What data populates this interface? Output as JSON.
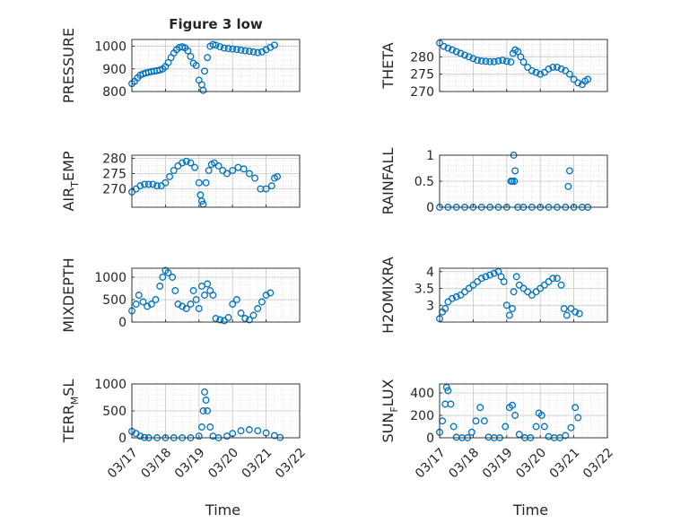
{
  "figure": {
    "title": "Figure 3 low",
    "marker_color": "#0072BD",
    "axis_color": "#262626",
    "grid": "on (major + minor dotted)"
  },
  "x_axis": {
    "label": "Time",
    "type": "date",
    "range": [
      "03/17",
      "03/22"
    ],
    "ticks": [
      "03/17",
      "03/18",
      "03/19",
      "03/20",
      "03/21",
      "03/22"
    ]
  },
  "chart_data": [
    {
      "type": "scatter",
      "ylabel": "PRESSURE",
      "ylim": [
        800,
        1030
      ],
      "yticks": [
        "800",
        "900",
        "1000"
      ],
      "points": [
        [
          "03/17 00:00",
          835
        ],
        [
          "03/17 02:00",
          845
        ],
        [
          "03/17 04:00",
          860
        ],
        [
          "03/17 06:00",
          872
        ],
        [
          "03/17 08:00",
          878
        ],
        [
          "03/17 10:00",
          882
        ],
        [
          "03/17 12:00",
          885
        ],
        [
          "03/17 14:00",
          888
        ],
        [
          "03/17 16:00",
          890
        ],
        [
          "03/17 18:00",
          892
        ],
        [
          "03/17 20:00",
          895
        ],
        [
          "03/17 22:00",
          900
        ],
        [
          "03/18 00:00",
          910
        ],
        [
          "03/18 02:00",
          928
        ],
        [
          "03/18 04:00",
          950
        ],
        [
          "03/18 06:00",
          970
        ],
        [
          "03/18 08:00",
          985
        ],
        [
          "03/18 10:00",
          995
        ],
        [
          "03/18 12:00",
          998
        ],
        [
          "03/18 14:00",
          993
        ],
        [
          "03/18 16:00",
          980
        ],
        [
          "03/18 18:00",
          955
        ],
        [
          "03/18 20:00",
          925
        ],
        [
          "03/18 22:00",
          915
        ],
        [
          "03/19 00:00",
          850
        ],
        [
          "03/19 02:00",
          830
        ],
        [
          "03/19 03:00",
          805
        ],
        [
          "03/19 04:00",
          890
        ],
        [
          "03/19 06:00",
          950
        ],
        [
          "03/19 08:00",
          1000
        ],
        [
          "03/19 10:00",
          1008
        ],
        [
          "03/19 12:00",
          1005
        ],
        [
          "03/19 15:00",
          998
        ],
        [
          "03/19 18:00",
          992
        ],
        [
          "03/19 21:00",
          990
        ],
        [
          "03/20 00:00",
          988
        ],
        [
          "03/20 03:00",
          986
        ],
        [
          "03/20 06:00",
          983
        ],
        [
          "03/20 09:00",
          980
        ],
        [
          "03/20 12:00",
          978
        ],
        [
          "03/20 15:00",
          975
        ],
        [
          "03/20 18:00",
          972
        ],
        [
          "03/20 21:00",
          975
        ],
        [
          "03/21 00:00",
          985
        ],
        [
          "03/21 03:00",
          995
        ],
        [
          "03/21 06:00",
          1005
        ]
      ]
    },
    {
      "type": "scatter",
      "ylabel": "THETA",
      "ylim": [
        270,
        285
      ],
      "yticks": [
        "270",
        "275",
        "280"
      ],
      "points": [
        [
          "03/17 00:00",
          284
        ],
        [
          "03/17 03:00",
          283
        ],
        [
          "03/17 06:00",
          282.5
        ],
        [
          "03/17 09:00",
          282
        ],
        [
          "03/17 12:00",
          281.5
        ],
        [
          "03/17 15:00",
          281
        ],
        [
          "03/17 18:00",
          280.5
        ],
        [
          "03/17 21:00",
          280
        ],
        [
          "03/18 00:00",
          279.5
        ],
        [
          "03/18 03:00",
          279
        ],
        [
          "03/18 06:00",
          278.8
        ],
        [
          "03/18 09:00",
          278.7
        ],
        [
          "03/18 12:00",
          278.6
        ],
        [
          "03/18 15:00",
          278.6
        ],
        [
          "03/18 18:00",
          278.8
        ],
        [
          "03/18 21:00",
          279
        ],
        [
          "03/19 00:00",
          278.7
        ],
        [
          "03/19 03:00",
          278.5
        ],
        [
          "03/19 04:30",
          281
        ],
        [
          "03/19 06:00",
          282
        ],
        [
          "03/19 08:00",
          281.5
        ],
        [
          "03/19 10:00",
          280
        ],
        [
          "03/19 12:00",
          278.5
        ],
        [
          "03/19 15:00",
          277
        ],
        [
          "03/19 18:00",
          276
        ],
        [
          "03/19 21:00",
          275.5
        ],
        [
          "03/20 00:00",
          275
        ],
        [
          "03/20 03:00",
          275.5
        ],
        [
          "03/20 06:00",
          276.5
        ],
        [
          "03/20 09:00",
          277
        ],
        [
          "03/20 12:00",
          277
        ],
        [
          "03/20 15:00",
          276.5
        ],
        [
          "03/20 18:00",
          276
        ],
        [
          "03/20 21:00",
          275
        ],
        [
          "03/21 00:00",
          273.5
        ],
        [
          "03/21 03:00",
          272.5
        ],
        [
          "03/21 06:00",
          272
        ],
        [
          "03/21 08:00",
          273
        ],
        [
          "03/21 10:00",
          273.5
        ]
      ]
    },
    {
      "type": "scatter",
      "ylabel": "AIR_TEMP",
      "ylim": [
        264,
        281
      ],
      "yticks": [
        "270",
        "275",
        "280"
      ],
      "points": [
        [
          "03/17 00:00",
          269
        ],
        [
          "03/17 03:00",
          270
        ],
        [
          "03/17 06:00",
          271
        ],
        [
          "03/17 09:00",
          271.5
        ],
        [
          "03/17 12:00",
          271.5
        ],
        [
          "03/17 15:00",
          271.5
        ],
        [
          "03/17 18:00",
          271
        ],
        [
          "03/17 21:00",
          271
        ],
        [
          "03/18 00:00",
          272
        ],
        [
          "03/18 03:00",
          274
        ],
        [
          "03/18 06:00",
          276
        ],
        [
          "03/18 09:00",
          277.5
        ],
        [
          "03/18 12:00",
          278.5
        ],
        [
          "03/18 15:00",
          279
        ],
        [
          "03/18 18:00",
          278.5
        ],
        [
          "03/18 21:00",
          277
        ],
        [
          "03/19 00:00",
          272
        ],
        [
          "03/19 01:00",
          268
        ],
        [
          "03/19 02:00",
          266
        ],
        [
          "03/19 03:00",
          265
        ],
        [
          "03/19 05:00",
          272
        ],
        [
          "03/19 07:00",
          276
        ],
        [
          "03/19 09:00",
          278
        ],
        [
          "03/19 11:00",
          278.5
        ],
        [
          "03/19 14:00",
          277.5
        ],
        [
          "03/19 17:00",
          276
        ],
        [
          "03/19 20:00",
          275
        ],
        [
          "03/20 00:00",
          276
        ],
        [
          "03/20 04:00",
          277
        ],
        [
          "03/20 08:00",
          276.5
        ],
        [
          "03/20 12:00",
          275
        ],
        [
          "03/20 16:00",
          273.5
        ],
        [
          "03/20 20:00",
          270
        ],
        [
          "03/21 00:00",
          270
        ],
        [
          "03/21 04:00",
          271
        ],
        [
          "03/21 06:00",
          273.5
        ],
        [
          "03/21 08:00",
          274
        ]
      ]
    },
    {
      "type": "scatter",
      "ylabel": "RAINFALL",
      "ylim": [
        0,
        1
      ],
      "yticks": [
        "0",
        "0.5",
        "1"
      ],
      "points": [
        [
          "03/17 00:00",
          0
        ],
        [
          "03/17 06:00",
          0
        ],
        [
          "03/17 12:00",
          0
        ],
        [
          "03/17 18:00",
          0
        ],
        [
          "03/18 00:00",
          0
        ],
        [
          "03/18 06:00",
          0
        ],
        [
          "03/18 12:00",
          0
        ],
        [
          "03/18 18:00",
          0
        ],
        [
          "03/19 00:00",
          0
        ],
        [
          "03/19 03:00",
          0.5
        ],
        [
          "03/19 04:00",
          0.5
        ],
        [
          "03/19 05:00",
          1.0
        ],
        [
          "03/19 05:30",
          0.5
        ],
        [
          "03/19 06:00",
          0.7
        ],
        [
          "03/19 08:00",
          0
        ],
        [
          "03/19 12:00",
          0
        ],
        [
          "03/19 18:00",
          0
        ],
        [
          "03/20 00:00",
          0
        ],
        [
          "03/20 06:00",
          0
        ],
        [
          "03/20 12:00",
          0
        ],
        [
          "03/20 18:00",
          0
        ],
        [
          "03/20 20:00",
          0.4
        ],
        [
          "03/20 21:00",
          0.7
        ],
        [
          "03/21 00:00",
          0
        ],
        [
          "03/21 06:00",
          0
        ],
        [
          "03/21 10:00",
          0
        ]
      ]
    },
    {
      "type": "scatter",
      "ylabel": "MIXDEPTH",
      "ylim": [
        0,
        1200
      ],
      "yticks": [
        "0",
        "500",
        "1000"
      ],
      "points": [
        [
          "03/17 00:00",
          250
        ],
        [
          "03/17 03:00",
          400
        ],
        [
          "03/17 05:00",
          600
        ],
        [
          "03/17 08:00",
          450
        ],
        [
          "03/17 11:00",
          350
        ],
        [
          "03/17 14:00",
          400
        ],
        [
          "03/17 17:00",
          500
        ],
        [
          "03/17 20:00",
          800
        ],
        [
          "03/17 22:00",
          1000
        ],
        [
          "03/18 00:00",
          1150
        ],
        [
          "03/18 02:00",
          1100
        ],
        [
          "03/18 05:00",
          1000
        ],
        [
          "03/18 07:00",
          700
        ],
        [
          "03/18 09:00",
          400
        ],
        [
          "03/18 12:00",
          350
        ],
        [
          "03/18 15:00",
          300
        ],
        [
          "03/18 18:00",
          400
        ],
        [
          "03/18 20:00",
          700
        ],
        [
          "03/18 22:00",
          500
        ],
        [
          "03/19 00:00",
          300
        ],
        [
          "03/19 02:00",
          800
        ],
        [
          "03/19 04:00",
          600
        ],
        [
          "03/19 06:00",
          850
        ],
        [
          "03/19 08:00",
          700
        ],
        [
          "03/19 10:00",
          600
        ],
        [
          "03/19 12:00",
          80
        ],
        [
          "03/19 15:00",
          50
        ],
        [
          "03/19 18:00",
          30
        ],
        [
          "03/19 21:00",
          100
        ],
        [
          "03/20 00:00",
          400
        ],
        [
          "03/20 03:00",
          500
        ],
        [
          "03/20 06:00",
          200
        ],
        [
          "03/20 09:00",
          80
        ],
        [
          "03/20 12:00",
          50
        ],
        [
          "03/20 15:00",
          150
        ],
        [
          "03/20 18:00",
          300
        ],
        [
          "03/20 21:00",
          450
        ],
        [
          "03/21 00:00",
          600
        ],
        [
          "03/21 03:00",
          650
        ]
      ]
    },
    {
      "type": "scatter",
      "ylabel": "H2OMIXRA",
      "ylim": [
        2.5,
        4.1
      ],
      "yticks": [
        "3",
        "3.5",
        "4"
      ],
      "points": [
        [
          "03/17 00:00",
          2.6
        ],
        [
          "03/17 02:00",
          2.8
        ],
        [
          "03/17 04:00",
          2.9
        ],
        [
          "03/17 06:00",
          3.1
        ],
        [
          "03/17 09:00",
          3.2
        ],
        [
          "03/17 12:00",
          3.25
        ],
        [
          "03/17 15:00",
          3.3
        ],
        [
          "03/17 18:00",
          3.4
        ],
        [
          "03/17 21:00",
          3.5
        ],
        [
          "03/18 00:00",
          3.6
        ],
        [
          "03/18 03:00",
          3.7
        ],
        [
          "03/18 06:00",
          3.8
        ],
        [
          "03/18 09:00",
          3.85
        ],
        [
          "03/18 12:00",
          3.9
        ],
        [
          "03/18 15:00",
          3.95
        ],
        [
          "03/18 18:00",
          4.0
        ],
        [
          "03/18 20:00",
          3.85
        ],
        [
          "03/18 22:00",
          3.7
        ],
        [
          "03/19 00:00",
          3.0
        ],
        [
          "03/19 02:00",
          2.7
        ],
        [
          "03/19 04:00",
          2.9
        ],
        [
          "03/19 05:00",
          3.4
        ],
        [
          "03/19 07:00",
          3.85
        ],
        [
          "03/19 09:00",
          3.6
        ],
        [
          "03/19 12:00",
          3.5
        ],
        [
          "03/19 15:00",
          3.4
        ],
        [
          "03/19 18:00",
          3.3
        ],
        [
          "03/19 21:00",
          3.4
        ],
        [
          "03/20 00:00",
          3.5
        ],
        [
          "03/20 03:00",
          3.6
        ],
        [
          "03/20 06:00",
          3.7
        ],
        [
          "03/20 09:00",
          3.8
        ],
        [
          "03/20 12:00",
          3.8
        ],
        [
          "03/20 15:00",
          3.6
        ],
        [
          "03/20 17:00",
          2.9
        ],
        [
          "03/20 19:00",
          2.7
        ],
        [
          "03/20 22:00",
          2.9
        ],
        [
          "03/21 01:00",
          2.8
        ],
        [
          "03/21 04:00",
          2.75
        ]
      ]
    },
    {
      "type": "scatter",
      "ylabel": "TERR_MSL",
      "ylim": [
        0,
        1000
      ],
      "yticks": [
        "0",
        "500",
        "1000"
      ],
      "points": [
        [
          "03/17 00:00",
          120
        ],
        [
          "03/17 03:00",
          80
        ],
        [
          "03/17 06:00",
          30
        ],
        [
          "03/17 09:00",
          5
        ],
        [
          "03/17 12:00",
          0
        ],
        [
          "03/17 18:00",
          0
        ],
        [
          "03/18 00:00",
          0
        ],
        [
          "03/18 06:00",
          0
        ],
        [
          "03/18 12:00",
          0
        ],
        [
          "03/18 18:00",
          0
        ],
        [
          "03/19 00:00",
          30
        ],
        [
          "03/19 02:00",
          200
        ],
        [
          "03/19 03:00",
          500
        ],
        [
          "03/19 04:00",
          850
        ],
        [
          "03/19 05:00",
          700
        ],
        [
          "03/19 06:00",
          500
        ],
        [
          "03/19 08:00",
          200
        ],
        [
          "03/19 10:00",
          30
        ],
        [
          "03/19 14:00",
          0
        ],
        [
          "03/19 20:00",
          30
        ],
        [
          "03/20 00:00",
          80
        ],
        [
          "03/20 06:00",
          130
        ],
        [
          "03/20 12:00",
          150
        ],
        [
          "03/20 18:00",
          130
        ],
        [
          "03/21 00:00",
          90
        ],
        [
          "03/21 06:00",
          40
        ],
        [
          "03/21 10:00",
          5
        ]
      ]
    },
    {
      "type": "scatter",
      "ylabel": "SUN_FLUX",
      "ylim": [
        0,
        480
      ],
      "yticks": [
        "0",
        "200",
        "400"
      ],
      "points": [
        [
          "03/17 00:00",
          50
        ],
        [
          "03/17 02:00",
          150
        ],
        [
          "03/17 04:00",
          300
        ],
        [
          "03/17 05:00",
          450
        ],
        [
          "03/17 06:00",
          420
        ],
        [
          "03/17 08:00",
          300
        ],
        [
          "03/17 10:00",
          100
        ],
        [
          "03/17 12:00",
          5
        ],
        [
          "03/17 16:00",
          0
        ],
        [
          "03/17 20:00",
          0
        ],
        [
          "03/17 23:00",
          50
        ],
        [
          "03/18 02:00",
          150
        ],
        [
          "03/18 05:00",
          270
        ],
        [
          "03/18 08:00",
          150
        ],
        [
          "03/18 11:00",
          5
        ],
        [
          "03/18 15:00",
          0
        ],
        [
          "03/18 19:00",
          0
        ],
        [
          "03/18 23:00",
          100
        ],
        [
          "03/19 02:00",
          270
        ],
        [
          "03/19 04:00",
          290
        ],
        [
          "03/19 06:00",
          200
        ],
        [
          "03/19 09:00",
          30
        ],
        [
          "03/19 13:00",
          0
        ],
        [
          "03/19 17:00",
          0
        ],
        [
          "03/19 21:00",
          100
        ],
        [
          "03/19 23:00",
          220
        ],
        [
          "03/20 01:00",
          200
        ],
        [
          "03/20 03:00",
          100
        ],
        [
          "03/20 06:00",
          10
        ],
        [
          "03/20 10:00",
          0
        ],
        [
          "03/20 14:00",
          0
        ],
        [
          "03/20 18:00",
          20
        ],
        [
          "03/20 22:00",
          90
        ],
        [
          "03/21 01:00",
          270
        ],
        [
          "03/21 03:00",
          180
        ]
      ]
    }
  ]
}
